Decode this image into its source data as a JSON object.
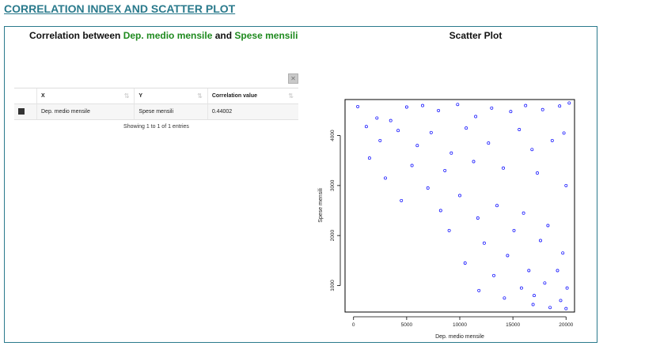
{
  "section_title": "CORRELATION INDEX AND SCATTER PLOT",
  "left_panel": {
    "heading_prefix": "Correlation between ",
    "x_var": "Dep. medio mensile",
    "heading_mid": " and ",
    "y_var": "Spese mensili",
    "table": {
      "columns": [
        "X",
        "Y",
        "Correlation value"
      ],
      "rows": [
        {
          "x": "Dep. medio mensile",
          "y": "Spese mensili",
          "value": "0.44002"
        }
      ],
      "info": "Showing 1 to 1 of 1 entries"
    }
  },
  "right_panel": {
    "title": "Scatter Plot"
  },
  "colors": {
    "accent": "#2a7a8c",
    "variable": "#1f8a1f",
    "points": "#0000ff"
  },
  "chart_data": {
    "type": "scatter",
    "title": "Scatter Plot",
    "xlabel": "Dep. medio mensile",
    "ylabel": "Spese mensili",
    "xlim": [
      -800,
      20800
    ],
    "ylim": [
      470,
      4720
    ],
    "xticks": [
      0,
      5000,
      10000,
      15000,
      20000
    ],
    "yticks": [
      1000,
      2000,
      3000,
      4000
    ],
    "grid": false,
    "correlation": 0.44002,
    "series": [
      {
        "marker": "open-circle",
        "color": "#0000ff",
        "points": [
          [
            400,
            4580
          ],
          [
            2200,
            4350
          ],
          [
            3500,
            4300
          ],
          [
            5000,
            4570
          ],
          [
            6500,
            4600
          ],
          [
            8000,
            4500
          ],
          [
            9800,
            4620
          ],
          [
            11500,
            4380
          ],
          [
            13000,
            4550
          ],
          [
            14800,
            4480
          ],
          [
            16200,
            4600
          ],
          [
            17800,
            4520
          ],
          [
            19400,
            4590
          ],
          [
            20300,
            4650
          ],
          [
            1200,
            4180
          ],
          [
            4200,
            4100
          ],
          [
            7300,
            4060
          ],
          [
            10600,
            4150
          ],
          [
            15600,
            4120
          ],
          [
            19800,
            4050
          ],
          [
            2500,
            3900
          ],
          [
            6000,
            3800
          ],
          [
            9200,
            3650
          ],
          [
            12700,
            3850
          ],
          [
            16800,
            3720
          ],
          [
            18700,
            3900
          ],
          [
            1500,
            3550
          ],
          [
            5500,
            3400
          ],
          [
            8600,
            3300
          ],
          [
            11300,
            3480
          ],
          [
            14100,
            3350
          ],
          [
            17300,
            3250
          ],
          [
            20000,
            3000
          ],
          [
            3000,
            3150
          ],
          [
            7000,
            2950
          ],
          [
            10000,
            2800
          ],
          [
            13500,
            2600
          ],
          [
            16000,
            2450
          ],
          [
            18300,
            2200
          ],
          [
            19700,
            1650
          ],
          [
            4500,
            2700
          ],
          [
            8200,
            2500
          ],
          [
            11700,
            2350
          ],
          [
            15100,
            2100
          ],
          [
            17600,
            1900
          ],
          [
            19200,
            1300
          ],
          [
            9000,
            2100
          ],
          [
            12300,
            1850
          ],
          [
            14500,
            1600
          ],
          [
            16500,
            1300
          ],
          [
            18000,
            1050
          ],
          [
            20100,
            950
          ],
          [
            10500,
            1450
          ],
          [
            13200,
            1200
          ],
          [
            15800,
            950
          ],
          [
            17000,
            800
          ],
          [
            19500,
            700
          ],
          [
            11800,
            900
          ],
          [
            14200,
            750
          ],
          [
            16900,
            620
          ],
          [
            18500,
            560
          ],
          [
            20000,
            540
          ]
        ]
      }
    ]
  }
}
